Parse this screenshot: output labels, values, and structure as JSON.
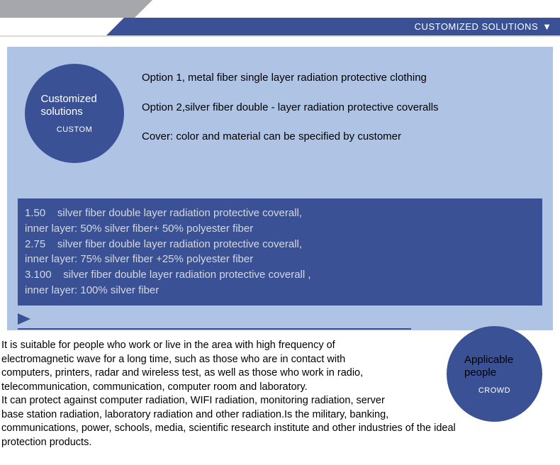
{
  "header": {
    "bar_text": "CUSTOMIZED SOLUTIONS",
    "arrow_glyph": "▼"
  },
  "colors": {
    "blue_bar": "#3a5295",
    "light_panel": "#afc3e4",
    "gray_shape": "#a5a7ac",
    "dark_box": "#3a5295",
    "dark_box_text": "#d4d7e0",
    "body_text": "#000000",
    "white": "#ffffff"
  },
  "circle1": {
    "line1": "Customized",
    "line2": "solutions",
    "sub": "CUSTOM"
  },
  "options": {
    "opt1": "Option 1, metal fiber single layer radiation protective clothing",
    "opt2": "Option 2,silver fiber double - layer radiation protective coveralls",
    "cover": "Cover: color and material can be specified by customer"
  },
  "specs": {
    "l1": "1.50    silver fiber double layer radiation protective coverall,",
    "l2": "inner layer: 50% silver fiber+ 50% polyester fiber",
    "l3": "2.75    silver fiber double layer radiation protective coverall,",
    "l4": "inner layer: 75% silver fiber +25% polyester fiber",
    "l5": "3.100    silver fiber double layer radiation protective coverall ,",
    "l6": "inner layer: 100% silver fiber"
  },
  "circle2": {
    "line1": "Applicable",
    "line2": "people",
    "sub": "CROWD"
  },
  "body": {
    "p1": "It is suitable for people who work or live in the area with high frequency of",
    "p2": "electromagnetic wave for a long time, such as those who are in contact with",
    "p3": "computers, printers, radar and wireless test, as well as those who work in radio,",
    "p4": " telecommunication, communication, computer room and laboratory.",
    "p5": "It can protect against computer radiation, WIFI radiation, monitoring radiation, server",
    "p6": "base station radiation, laboratory radiation and other radiation.Is the military, banking,",
    "p7": "communications, power, schools, media, scientific research institute and other industries of the ideal",
    "p8": "protection products."
  }
}
